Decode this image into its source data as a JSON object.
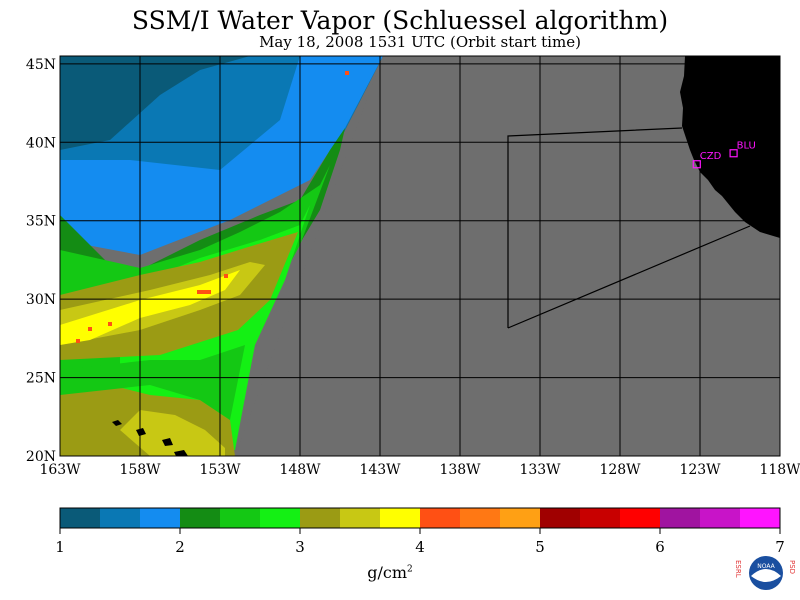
{
  "title": "SSM/I Water Vapor (Schluessel algorithm)",
  "subtitle": "May 18, 2008  1531 UTC  (Orbit start time)",
  "map": {
    "lat_labels": [
      "45N",
      "40N",
      "35N",
      "30N",
      "25N",
      "20N"
    ],
    "lat_values": [
      45,
      40,
      35,
      30,
      25,
      20
    ],
    "lon_labels": [
      "163W",
      "158W",
      "153W",
      "148W",
      "143W",
      "138W",
      "133W",
      "128W",
      "123W",
      "118W"
    ],
    "lon_values": [
      -163,
      -158,
      -153,
      -148,
      -143,
      -138,
      -133,
      -128,
      -123,
      -118
    ],
    "lat_range": [
      20,
      45.5
    ],
    "lon_range": [
      -163,
      -118
    ],
    "stations": [
      {
        "label": "CZD",
        "lat": 38.6,
        "lon": -123.2
      },
      {
        "label": "BLU",
        "lat": 39.3,
        "lon": -120.9
      }
    ],
    "colors": {
      "no_data": "#6e6e6e",
      "land": "#000000",
      "grid": "#000000"
    }
  },
  "colorbar": {
    "tick_labels": [
      "1",
      "2",
      "3",
      "4",
      "5",
      "6",
      "7"
    ],
    "min": 1,
    "max": 7,
    "colors": [
      "#0a5a78",
      "#0a78b4",
      "#148cf0",
      "#148c14",
      "#14c814",
      "#14f014",
      "#9b9b14",
      "#c8c814",
      "#ffff00",
      "#ff5014",
      "#ff7814",
      "#ffa014",
      "#a00000",
      "#c80000",
      "#ff0000",
      "#a014a0",
      "#c814c8",
      "#ff14ff"
    ],
    "unit": "g/cm",
    "unit_sup": "2"
  },
  "logo": {
    "left_text": "ESRL",
    "right_text": "PSD",
    "center_text": "NOAA"
  }
}
